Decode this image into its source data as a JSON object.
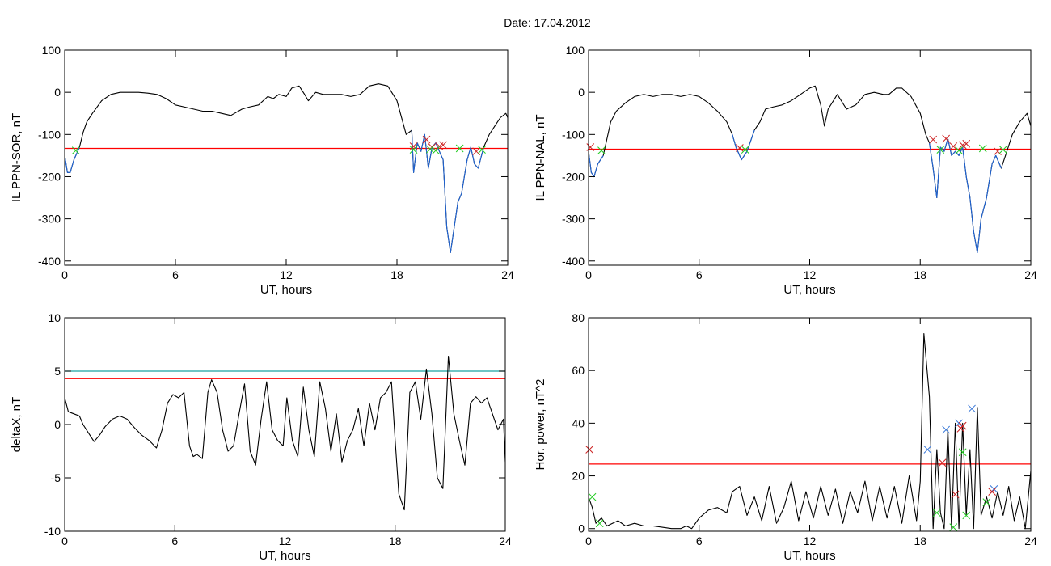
{
  "title": "Date:  17.04.2012",
  "chart_data": [
    {
      "id": "sor",
      "type": "line",
      "xlabel": "UT, hours",
      "ylabel": "IL PPN-SOR, nT",
      "xlim": [
        0,
        24
      ],
      "ylim": [
        -410,
        100
      ],
      "xticks": [
        0,
        6,
        12,
        18,
        24
      ],
      "yticks": [
        100,
        0,
        -100,
        -200,
        -300,
        -400
      ],
      "threshold": {
        "color": "#ff0000",
        "value": -133
      },
      "series": [
        {
          "color": "#000000",
          "x": [
            0,
            0.15,
            0.3,
            0.5,
            0.8,
            1.0,
            1.2,
            1.5,
            2.0,
            2.5,
            3.0,
            3.5,
            4.0,
            4.5,
            5.0,
            5.5,
            6.0,
            6.5,
            7.0,
            7.5,
            8.0,
            8.5,
            9.0,
            9.2,
            9.6,
            10.0,
            10.5,
            11.0,
            11.3,
            11.6,
            12.0,
            12.3,
            12.7,
            13.0,
            13.2,
            13.6,
            14.0,
            14.5,
            15.0,
            15.5,
            16.0,
            16.5,
            17.0,
            17.5,
            18.0,
            18.5,
            18.8,
            18.9,
            19.1,
            19.3,
            19.5,
            19.7,
            19.9,
            20.1,
            20.3,
            20.5,
            20.7,
            20.9,
            21.1,
            21.3,
            21.5,
            21.8,
            22.0,
            22.2,
            22.4,
            22.7,
            23.0,
            23.3,
            23.6,
            23.9,
            24.0
          ],
          "y": [
            -150,
            -190,
            -190,
            -160,
            -130,
            -95,
            -70,
            -50,
            -20,
            -5,
            0,
            0,
            0,
            -2,
            -5,
            -15,
            -30,
            -35,
            -40,
            -45,
            -45,
            -50,
            -55,
            -50,
            -40,
            -35,
            -30,
            -10,
            -15,
            -5,
            -10,
            10,
            15,
            -5,
            -20,
            0,
            -5,
            -5,
            -5,
            -10,
            -5,
            15,
            20,
            15,
            -20,
            -100,
            -90,
            -190,
            -120,
            -140,
            -100,
            -180,
            -130,
            -120,
            -140,
            -160,
            -320,
            -380,
            -320,
            -260,
            -240,
            -160,
            -130,
            -170,
            -180,
            -130,
            -100,
            -80,
            -60,
            -50,
            -60
          ]
        },
        {
          "color": "#1f64d4",
          "x": [
            0,
            0.15,
            0.3,
            0.5,
            0.8
          ],
          "y": [
            -150,
            -190,
            -190,
            -160,
            -130
          ]
        },
        {
          "color": "#1f64d4",
          "x": [
            18.8,
            18.9,
            19.1,
            19.3,
            19.5,
            19.7,
            19.9,
            20.1,
            20.3,
            20.5,
            20.7,
            20.9,
            21.1,
            21.3,
            21.5,
            21.8,
            22.0,
            22.2,
            22.4,
            22.7
          ],
          "y": [
            -90,
            -190,
            -120,
            -140,
            -100,
            -180,
            -130,
            -120,
            -140,
            -160,
            -320,
            -380,
            -320,
            -260,
            -240,
            -160,
            -130,
            -170,
            -180,
            -130
          ]
        }
      ],
      "markers": [
        {
          "color": "#cc2222",
          "x": [
            18.9,
            19.6,
            19.9,
            20.3,
            20.5,
            22.3
          ],
          "y": [
            -128,
            -112,
            -130,
            -128,
            -125,
            -140
          ]
        },
        {
          "color": "#22cc22",
          "x": [
            0.6,
            18.9,
            19.8,
            20.1,
            21.4,
            22.6
          ],
          "y": [
            -138,
            -136,
            -135,
            -138,
            -133,
            -136
          ]
        }
      ]
    },
    {
      "id": "nal",
      "type": "line",
      "xlabel": "UT, hours",
      "ylabel": "IL PPN-NAL, nT",
      "xlim": [
        0,
        24
      ],
      "ylim": [
        -410,
        100
      ],
      "xticks": [
        0,
        6,
        12,
        18,
        24
      ],
      "yticks": [
        100,
        0,
        -100,
        -200,
        -300,
        -400
      ],
      "threshold": {
        "color": "#ff0000",
        "value": -135
      },
      "series": [
        {
          "color": "#000000",
          "x": [
            0,
            0.15,
            0.3,
            0.5,
            0.8,
            1.0,
            1.2,
            1.5,
            2.0,
            2.5,
            3.0,
            3.5,
            4.0,
            4.5,
            5.0,
            5.5,
            6.0,
            6.5,
            7.0,
            7.5,
            7.8,
            8.0,
            8.3,
            8.6,
            9.0,
            9.3,
            9.6,
            10.0,
            10.5,
            11.0,
            11.5,
            12.0,
            12.3,
            12.6,
            12.8,
            13.0,
            13.5,
            14.0,
            14.5,
            15.0,
            15.5,
            16.0,
            16.3,
            16.7,
            17.0,
            17.5,
            18.0,
            18.3,
            18.5,
            18.7,
            18.9,
            19.1,
            19.3,
            19.5,
            19.7,
            19.9,
            20.1,
            20.3,
            20.5,
            20.7,
            20.9,
            21.1,
            21.3,
            21.6,
            21.9,
            22.1,
            22.4,
            22.7,
            23.0,
            23.4,
            23.8,
            24.0
          ],
          "y": [
            -140,
            -190,
            -200,
            -170,
            -150,
            -110,
            -70,
            -45,
            -25,
            -10,
            -5,
            -10,
            -5,
            -5,
            -10,
            -5,
            -10,
            -25,
            -45,
            -70,
            -100,
            -130,
            -160,
            -140,
            -90,
            -70,
            -40,
            -35,
            -30,
            -20,
            -5,
            10,
            15,
            -30,
            -80,
            -40,
            -5,
            -40,
            -30,
            -5,
            0,
            -5,
            -5,
            10,
            10,
            -10,
            -50,
            -100,
            -120,
            -180,
            -250,
            -130,
            -140,
            -110,
            -150,
            -140,
            -150,
            -130,
            -200,
            -250,
            -330,
            -380,
            -300,
            -250,
            -170,
            -150,
            -180,
            -140,
            -100,
            -70,
            -50,
            -80
          ]
        },
        {
          "color": "#1f64d4",
          "x": [
            0,
            0.15,
            0.3,
            0.5,
            0.8
          ],
          "y": [
            -140,
            -190,
            -200,
            -170,
            -150
          ]
        },
        {
          "color": "#1f64d4",
          "x": [
            7.8,
            8.0,
            8.3,
            8.6,
            9.0
          ],
          "y": [
            -100,
            -130,
            -160,
            -140,
            -90
          ]
        },
        {
          "color": "#1f64d4",
          "x": [
            18.5,
            18.7,
            18.9,
            19.1,
            19.3,
            19.5,
            19.7,
            19.9,
            20.1,
            20.3,
            20.5,
            20.7,
            20.9,
            21.1,
            21.3,
            21.6,
            21.9,
            22.1,
            22.4
          ],
          "y": [
            -120,
            -180,
            -250,
            -130,
            -140,
            -110,
            -150,
            -140,
            -150,
            -130,
            -200,
            -250,
            -330,
            -380,
            -300,
            -250,
            -170,
            -150,
            -180
          ]
        }
      ],
      "markers": [
        {
          "color": "#cc2222",
          "x": [
            0.1,
            8.2,
            18.7,
            19.4,
            19.8,
            20.3,
            20.5,
            22.2
          ],
          "y": [
            -130,
            -132,
            -112,
            -110,
            -128,
            -125,
            -122,
            -140
          ]
        },
        {
          "color": "#22cc22",
          "x": [
            0.7,
            8.5,
            19.1,
            20.1,
            21.4,
            22.5
          ],
          "y": [
            -138,
            -136,
            -136,
            -138,
            -133,
            -136
          ]
        }
      ]
    },
    {
      "id": "deltax",
      "type": "line",
      "xlabel": "UT, hours",
      "ylabel": "deltaX, nT",
      "xlim": [
        0,
        24
      ],
      "ylim": [
        -10,
        10
      ],
      "xticks": [
        0,
        6,
        12,
        18,
        24
      ],
      "yticks": [
        10,
        5,
        0,
        -5,
        -10
      ],
      "threshold": {
        "color": "#ff0000",
        "value": 4.3
      },
      "threshold2": {
        "color": "#1aa0a0",
        "value": 5.0
      },
      "series": [
        {
          "color": "#000000",
          "x": [
            0,
            0.2,
            0.5,
            0.8,
            1.0,
            1.3,
            1.6,
            1.9,
            2.2,
            2.6,
            3.0,
            3.4,
            3.8,
            4.2,
            4.6,
            5.0,
            5.3,
            5.6,
            5.9,
            6.2,
            6.5,
            6.8,
            7.0,
            7.2,
            7.5,
            7.8,
            8.0,
            8.3,
            8.6,
            8.9,
            9.2,
            9.5,
            9.8,
            10.1,
            10.4,
            10.7,
            11.0,
            11.3,
            11.6,
            11.9,
            12.1,
            12.4,
            12.7,
            13.0,
            13.3,
            13.6,
            13.9,
            14.2,
            14.5,
            14.8,
            15.1,
            15.4,
            15.7,
            16.0,
            16.3,
            16.6,
            16.9,
            17.2,
            17.5,
            17.8,
            18.0,
            18.2,
            18.5,
            18.8,
            19.1,
            19.4,
            19.7,
            20.0,
            20.3,
            20.6,
            20.9,
            21.2,
            21.5,
            21.8,
            22.1,
            22.4,
            22.7,
            23.0,
            23.3,
            23.6,
            23.9,
            24.0
          ],
          "y": [
            2.5,
            1.2,
            1.0,
            0.8,
            0.0,
            -0.8,
            -1.6,
            -1.0,
            -0.2,
            0.5,
            0.8,
            0.5,
            -0.3,
            -1.0,
            -1.5,
            -2.2,
            -0.5,
            2.0,
            2.8,
            2.5,
            3.0,
            -2.0,
            -3.0,
            -2.8,
            -3.2,
            3.0,
            4.2,
            3.0,
            -0.5,
            -2.5,
            -2.0,
            1.0,
            3.8,
            -2.5,
            -3.8,
            0.5,
            4.0,
            -0.5,
            -1.5,
            -2.0,
            2.5,
            -1.5,
            -3.0,
            3.5,
            -0.5,
            -3.0,
            4.0,
            1.5,
            -2.5,
            1.0,
            -3.5,
            -1.5,
            -0.5,
            1.5,
            -2.0,
            2.0,
            -0.5,
            2.5,
            3.0,
            4.0,
            -1.5,
            -6.5,
            -8.0,
            3.0,
            4.0,
            0.5,
            5.2,
            1.0,
            -5.0,
            -6.0,
            6.4,
            1.0,
            -1.5,
            -3.8,
            2.0,
            2.6,
            2.0,
            2.5,
            1.0,
            -0.5,
            0.5,
            -3.5
          ]
        }
      ],
      "markers": []
    },
    {
      "id": "power",
      "type": "line",
      "xlabel": "UT, hours",
      "ylabel": "Hor. power, nT^2",
      "xlim": [
        0,
        24
      ],
      "ylim": [
        -1,
        80
      ],
      "xticks": [
        0,
        6,
        12,
        18,
        24
      ],
      "yticks": [
        80,
        60,
        40,
        20,
        0
      ],
      "threshold": {
        "color": "#ff0000",
        "value": 24.5
      },
      "series": [
        {
          "color": "#000000",
          "x": [
            0,
            0.2,
            0.4,
            0.7,
            1.0,
            1.3,
            1.6,
            2.0,
            2.5,
            3.0,
            3.5,
            4.0,
            4.5,
            5.0,
            5.3,
            5.6,
            6.0,
            6.5,
            7.0,
            7.5,
            7.8,
            8.2,
            8.6,
            9.0,
            9.4,
            9.8,
            10.2,
            10.6,
            11.0,
            11.4,
            11.8,
            12.2,
            12.6,
            13.0,
            13.4,
            13.8,
            14.2,
            14.6,
            15.0,
            15.4,
            15.8,
            16.2,
            16.6,
            17.0,
            17.4,
            17.8,
            18.0,
            18.2,
            18.5,
            18.7,
            18.9,
            19.1,
            19.3,
            19.5,
            19.7,
            19.9,
            20.1,
            20.3,
            20.5,
            20.7,
            20.9,
            21.1,
            21.3,
            21.6,
            21.9,
            22.2,
            22.5,
            22.8,
            23.1,
            23.4,
            23.7,
            24.0
          ],
          "y": [
            12,
            8,
            2,
            4,
            1,
            2,
            3,
            1,
            2,
            1,
            1,
            0.5,
            0,
            0,
            1,
            0,
            4,
            7,
            8,
            6,
            14,
            16,
            5,
            12,
            3,
            16,
            2,
            8,
            18,
            3,
            14,
            4,
            16,
            5,
            15,
            2,
            14,
            6,
            18,
            3,
            16,
            4,
            16,
            2,
            20,
            3,
            18,
            74,
            50,
            0,
            30,
            6,
            0,
            38,
            0,
            40,
            0,
            40,
            5,
            30,
            0,
            46,
            5,
            12,
            4,
            14,
            5,
            16,
            3,
            12,
            0,
            22
          ]
        }
      ],
      "markers": [
        {
          "color": "#3a78d8",
          "x": [
            18.4,
            19.4,
            20.1,
            20.8,
            22.0
          ],
          "y": [
            30,
            37.5,
            40,
            45.5,
            15
          ]
        },
        {
          "color": "#cc2222",
          "x": [
            0.05,
            19.2,
            19.9,
            20.2,
            20.3,
            21.9
          ],
          "y": [
            30,
            25,
            13,
            38,
            39,
            14
          ]
        },
        {
          "color": "#22cc22",
          "x": [
            0.2,
            0.6,
            18.9,
            19.8,
            20.3,
            20.5,
            21.6
          ],
          "y": [
            12,
            2,
            6,
            0.5,
            29,
            5,
            10
          ]
        }
      ]
    }
  ]
}
